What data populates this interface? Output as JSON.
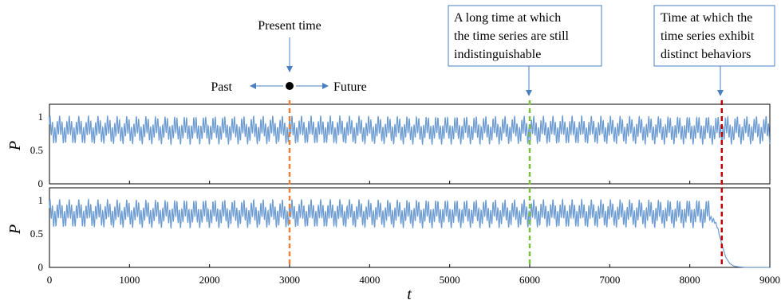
{
  "annotations": {
    "present_time": "Present time",
    "past": "Past",
    "future": "Future",
    "box_indistinguishable": [
      "A long time at which",
      "the time series are still",
      "indistinguishable"
    ],
    "box_distinct": [
      "Time at which the",
      "time series exhibit",
      "distinct behaviors"
    ]
  },
  "colors": {
    "series": "#6b9bd1",
    "present_line": "#e8823a",
    "indistinguishable_line": "#7cbf3e",
    "distinct_line": "#c00000",
    "arrow": "#4a7fc1"
  },
  "chart_data": [
    {
      "type": "line",
      "panel": "top",
      "ylabel": "P",
      "xlim": [
        0,
        9000
      ],
      "ylim": [
        0,
        1.2
      ],
      "yticks": [
        0,
        0.5,
        1
      ],
      "ytick_labels": [
        "0",
        "0.5",
        "1"
      ],
      "series": [
        {
          "x": [
            0,
            30,
            60,
            90,
            120,
            150,
            180,
            210,
            240,
            270,
            300,
            1000,
            2000,
            3000,
            4000,
            5000,
            6000,
            7000,
            8000,
            9000
          ],
          "y": [
            0.98,
            0.62,
            1.02,
            0.7,
            0.95,
            0.6,
            1.05,
            0.65,
            0.9,
            0.58,
            1.0,
            0.85,
            0.8,
            0.8,
            0.82,
            0.8,
            0.81,
            0.8,
            0.82,
            0.8
          ]
        }
      ],
      "markers": [
        3000,
        6000,
        8400
      ]
    },
    {
      "type": "line",
      "panel": "bottom",
      "ylabel": "P",
      "xlabel": "t",
      "xlim": [
        0,
        9000
      ],
      "ylim": [
        0,
        1.2
      ],
      "xticks": [
        0,
        1000,
        2000,
        3000,
        4000,
        5000,
        6000,
        7000,
        8000,
        9000
      ],
      "xtick_labels": [
        "0",
        "1000",
        "2000",
        "3000",
        "4000",
        "5000",
        "6000",
        "7000",
        "8000",
        "9000"
      ],
      "yticks": [
        0,
        0.5,
        1
      ],
      "ytick_labels": [
        "0",
        "0.5",
        "1"
      ],
      "series": [
        {
          "x": [
            0,
            1000,
            2000,
            3000,
            4000,
            5000,
            6000,
            7000,
            8000,
            8200,
            8300,
            8350,
            8400,
            8450,
            8500,
            8550,
            8600,
            8700,
            9000
          ],
          "y": [
            0.82,
            0.8,
            0.81,
            0.8,
            0.82,
            0.8,
            0.81,
            0.8,
            0.82,
            0.8,
            0.72,
            0.58,
            0.35,
            0.15,
            0.06,
            0.02,
            0.01,
            0.0,
            0.0
          ]
        }
      ],
      "markers": [
        3000,
        6000,
        8400
      ]
    }
  ]
}
